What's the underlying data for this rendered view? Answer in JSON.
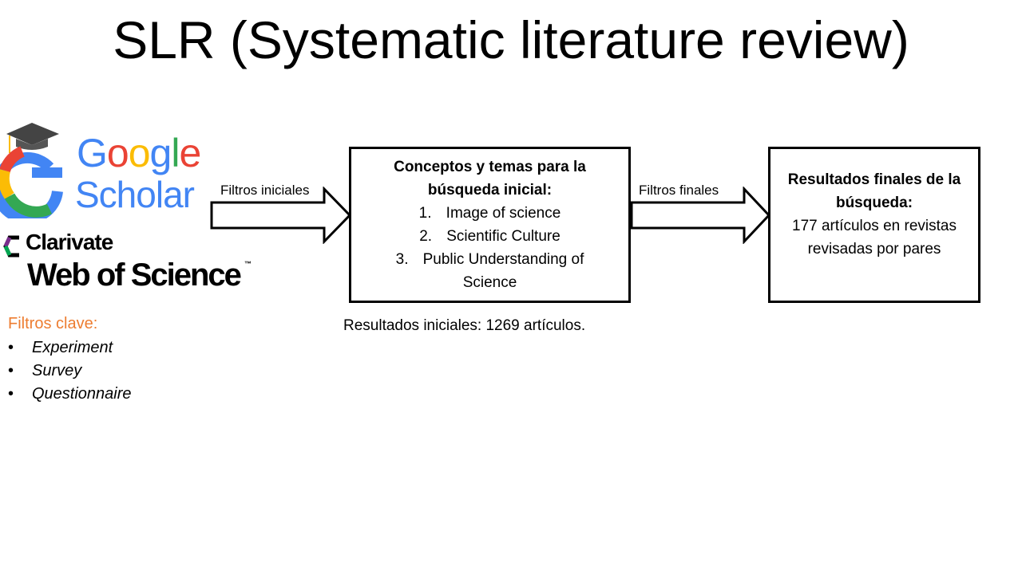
{
  "slide": {
    "title": "SLR (Systematic literature review)"
  },
  "logos": {
    "google_scholar": {
      "word1": "Google",
      "word2": "Scholar"
    },
    "web_of_science": {
      "brand": "Clarivate",
      "name": "Web of Science",
      "trademark": "™"
    }
  },
  "key_filters": {
    "heading": "Filtros clave:",
    "items": [
      "Experiment",
      "Survey",
      "Questionnaire"
    ],
    "heading_color": "#ED7D31"
  },
  "flow": {
    "arrow1_label": "Filtros iniciales",
    "arrow2_label": "Filtros finales",
    "concepts_box": {
      "heading": "Conceptos y temas para la búsqueda inicial:",
      "items": [
        {
          "num": "1.",
          "text": "Image of science"
        },
        {
          "num": "2.",
          "text": "Scientific Culture"
        },
        {
          "num": "3.",
          "text": "Public Understanding of Science"
        }
      ]
    },
    "initial_results": "Resultados iniciales: 1269 artículos.",
    "results_box": {
      "heading": "Resultados finales de la búsqueda:",
      "body": "177 artículos en revistas revisadas por pares"
    }
  },
  "colors": {
    "google_blue": "#4285F4",
    "google_red": "#EA4335",
    "google_yellow": "#FBBC05",
    "google_green": "#34A853",
    "accent_orange": "#ED7D31"
  }
}
